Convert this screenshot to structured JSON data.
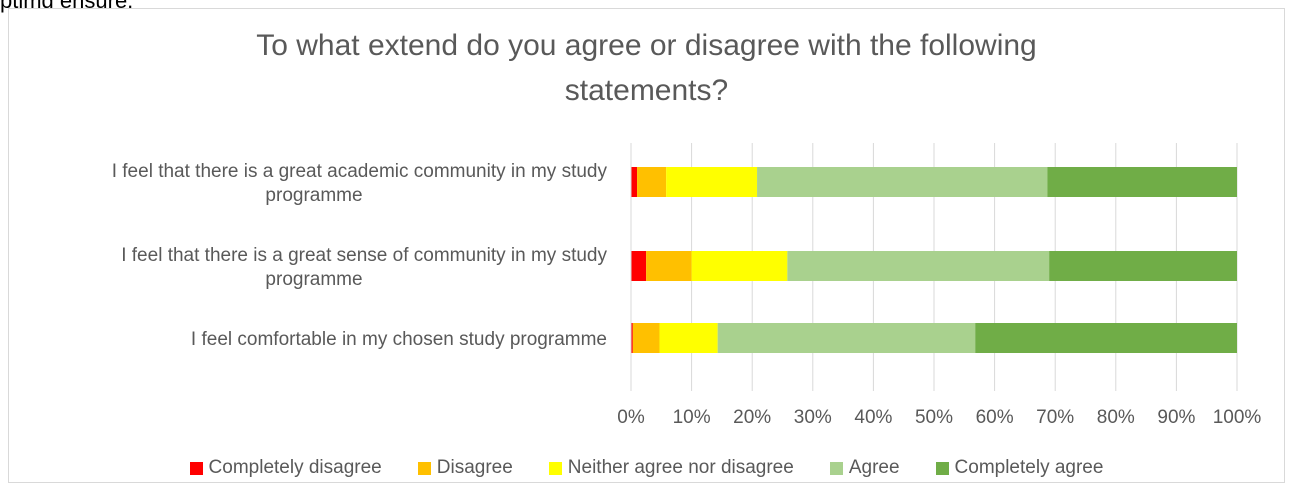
{
  "caption_fragment": "ptimg ensure.",
  "chart_data": {
    "type": "bar",
    "orientation": "horizontal",
    "stacked": "percent",
    "title": "To what extend do you agree or disagree with the following statements?",
    "title_lines": [
      "To what extend do you agree or disagree with the following",
      "statements?"
    ],
    "categories": [
      "I feel that there is a great academic community in my study programme",
      "I feel that there is a great sense of community in my study programme",
      "I feel comfortable in my chosen study programme"
    ],
    "category_lines": [
      [
        "I feel that there is a great academic community in my study",
        "programme"
      ],
      [
        "I feel that there is a great sense of community in my study",
        "programme"
      ],
      [
        "I feel comfortable in my chosen study programme"
      ]
    ],
    "series": [
      {
        "name": "Completely disagree",
        "color": "#ff0000",
        "values": [
          1,
          2.5,
          0.3
        ]
      },
      {
        "name": "Disagree",
        "color": "#ffc000",
        "values": [
          4.8,
          7.5,
          4.4
        ]
      },
      {
        "name": "Neither agree nor disagree",
        "color": "#ffff00",
        "values": [
          15,
          15.8,
          9.6
        ]
      },
      {
        "name": "Agree",
        "color": "#a9d18e",
        "values": [
          47.9,
          43.2,
          42.5
        ]
      },
      {
        "name": "Completely agree",
        "color": "#70ad47",
        "values": [
          31.3,
          31,
          43.2
        ]
      }
    ],
    "x_ticks": [
      "0%",
      "10%",
      "20%",
      "30%",
      "40%",
      "50%",
      "60%",
      "70%",
      "80%",
      "90%",
      "100%"
    ],
    "xlim": [
      0,
      100
    ],
    "grid": true,
    "legend_position": "bottom"
  }
}
